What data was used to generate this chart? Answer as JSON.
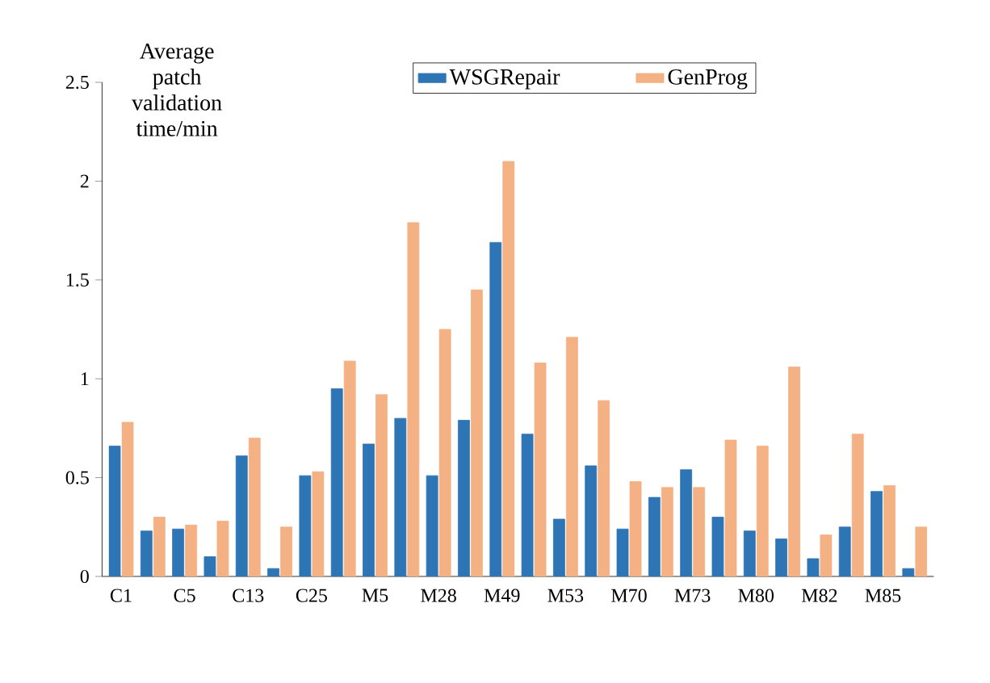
{
  "chart_data": {
    "type": "bar",
    "ylabel": "Average patch validation time/min",
    "categories": [
      "C1",
      null,
      "C5",
      null,
      "C13",
      null,
      "C25",
      null,
      "M5",
      null,
      "M28",
      null,
      "M49",
      null,
      "M53",
      null,
      "M70",
      null,
      "M73",
      null,
      "M80",
      null,
      "M82",
      null,
      "M85",
      null
    ],
    "series": [
      {
        "name": "WSGRepair",
        "color": "#2e75b6",
        "values": [
          0.66,
          0.23,
          0.24,
          0.1,
          0.61,
          0.04,
          0.51,
          0.95,
          0.67,
          0.8,
          0.51,
          0.79,
          1.69,
          0.72,
          0.29,
          0.56,
          0.24,
          0.4,
          0.54,
          0.3,
          0.23,
          0.19,
          0.09,
          0.25,
          0.43,
          0.04
        ]
      },
      {
        "name": "GenProg",
        "color": "#f4b183",
        "values": [
          0.78,
          0.3,
          0.26,
          0.28,
          0.7,
          0.25,
          0.53,
          1.09,
          0.92,
          1.79,
          1.25,
          1.45,
          2.1,
          1.08,
          1.21,
          0.89,
          0.48,
          0.45,
          0.45,
          0.69,
          0.66,
          1.06,
          0.21,
          0.72,
          0.46,
          0.25
        ]
      }
    ],
    "ylim": [
      0,
      2.5
    ],
    "yticks": [
      0,
      0.5,
      1,
      1.5,
      2,
      2.5
    ],
    "legend": "top"
  }
}
